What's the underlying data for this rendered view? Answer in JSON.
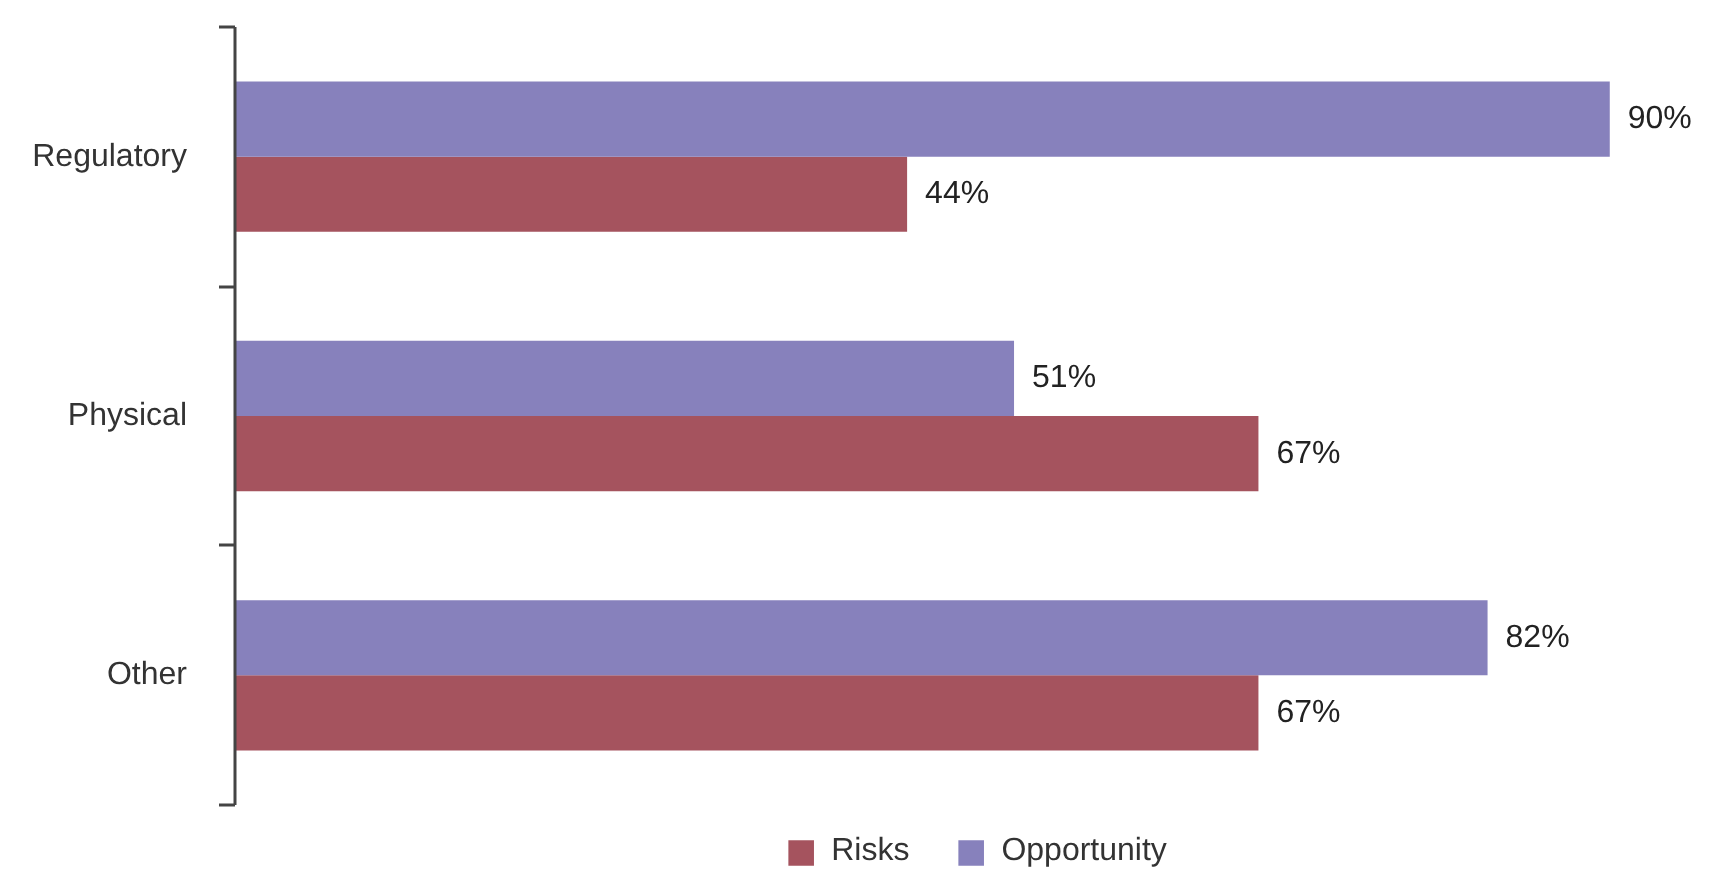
{
  "chart_data": {
    "type": "bar",
    "orientation": "horizontal",
    "categories": [
      "Regulatory",
      "Physical",
      "Other"
    ],
    "series": [
      {
        "name": "Risks",
        "color": "#a5535e",
        "values": [
          44,
          67,
          67
        ],
        "value_labels": [
          "44%",
          "67%",
          "67%"
        ]
      },
      {
        "name": "Opportunity",
        "color": "#8781bc",
        "values": [
          90,
          51,
          82
        ],
        "value_labels": [
          "90%",
          "51%",
          "82%"
        ]
      }
    ],
    "tick_labels": "y",
    "legend": "bottom"
  }
}
